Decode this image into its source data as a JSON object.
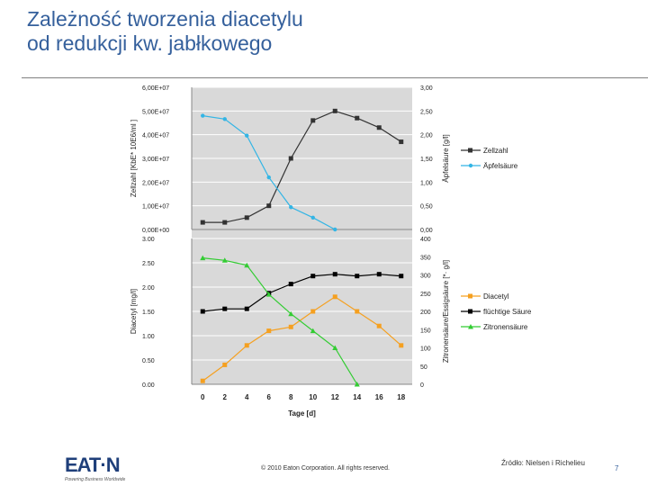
{
  "slide": {
    "title_line1": "Zależność tworzenia diacetylu",
    "title_line2": "od redukcji kw. jabłkowego",
    "footer": "© 2010 Eaton Corporation. All rights reserved.",
    "source": "Źródło: Nielsen i Richelieu",
    "page_number": "7",
    "logo_text": "EAT·N",
    "logo_tagline": "Powering Business Worldwide",
    "title_color": "#35609c"
  },
  "chart_data": [
    {
      "type": "line",
      "xlabel": "",
      "ylabel": "Zellzahl [KbE* 10E6/ml ]",
      "y2label": "Äpfelsäure [g/l]",
      "ylim": [
        0,
        60000000
      ],
      "y2lim": [
        0,
        3
      ],
      "xlim": [
        -1,
        19
      ],
      "yticks": [
        "0,00E+00",
        "1,00E+07",
        "2,00E+07",
        "3,00E+07",
        "4,00E+07",
        "5,00E+07",
        "6,00E+07"
      ],
      "y2ticks": [
        "0,00",
        "0,50",
        "1,00",
        "1,50",
        "2,00",
        "2,50",
        "3,00"
      ],
      "legend_position": "right",
      "series": [
        {
          "name": "Zellzahl",
          "axis": "left",
          "color": "#333333",
          "marker": "square",
          "x": [
            0,
            2,
            4,
            6,
            8,
            10,
            12,
            14,
            16,
            18
          ],
          "values": [
            3000000,
            3000000,
            5000000,
            10000000,
            30000000,
            46000000,
            50000000,
            47000000,
            43000000,
            37000000
          ]
        },
        {
          "name": "Äpfelsäure",
          "axis": "right",
          "color": "#33b5e5",
          "marker": "circle",
          "x": [
            0,
            2,
            4,
            6,
            8,
            10,
            12
          ],
          "values": [
            2.4,
            2.33,
            1.98,
            1.1,
            0.47,
            0.25,
            0.0
          ]
        }
      ]
    },
    {
      "type": "line",
      "xlabel": "Tage [d]",
      "ylabel": "Diacetyl [mg/l]",
      "y2label": "Zitronensäure/Essigsäure [*· g/l]",
      "ylim": [
        0,
        3
      ],
      "y2lim": [
        0,
        400
      ],
      "xlim": [
        -1,
        19
      ],
      "xticks": [
        "0",
        "2",
        "4",
        "6",
        "8",
        "10",
        "12",
        "14",
        "16",
        "18"
      ],
      "yticks": [
        "0.00",
        "0.50",
        "1.00",
        "1.50",
        "2.00",
        "2.50",
        "3.00"
      ],
      "y2ticks": [
        "0",
        "50",
        "100",
        "150",
        "200",
        "250",
        "300",
        "350",
        "400"
      ],
      "legend_position": "right",
      "series": [
        {
          "name": "Diacetyl",
          "axis": "left",
          "color": "#f5a020",
          "marker": "square",
          "x": [
            0,
            2,
            4,
            6,
            8,
            10,
            12,
            14,
            16,
            18
          ],
          "values": [
            0.07,
            0.4,
            0.8,
            1.1,
            1.18,
            1.5,
            1.8,
            1.5,
            1.2,
            0.8
          ]
        },
        {
          "name": "flüchtige Säure",
          "axis": "right",
          "color": "#000000",
          "marker": "square",
          "x": [
            0,
            2,
            4,
            6,
            8,
            10,
            12,
            14,
            16,
            18
          ],
          "values": [
            200,
            207,
            207,
            250,
            275,
            297,
            302,
            297,
            302,
            297
          ]
        },
        {
          "name": "Zitronensäure",
          "axis": "left",
          "color": "#33cc33",
          "marker": "triangle",
          "x": [
            0,
            2,
            4,
            6,
            8,
            10,
            12,
            14
          ],
          "values": [
            2.6,
            2.55,
            2.45,
            1.85,
            1.45,
            1.1,
            0.75,
            0.0
          ]
        }
      ]
    }
  ]
}
